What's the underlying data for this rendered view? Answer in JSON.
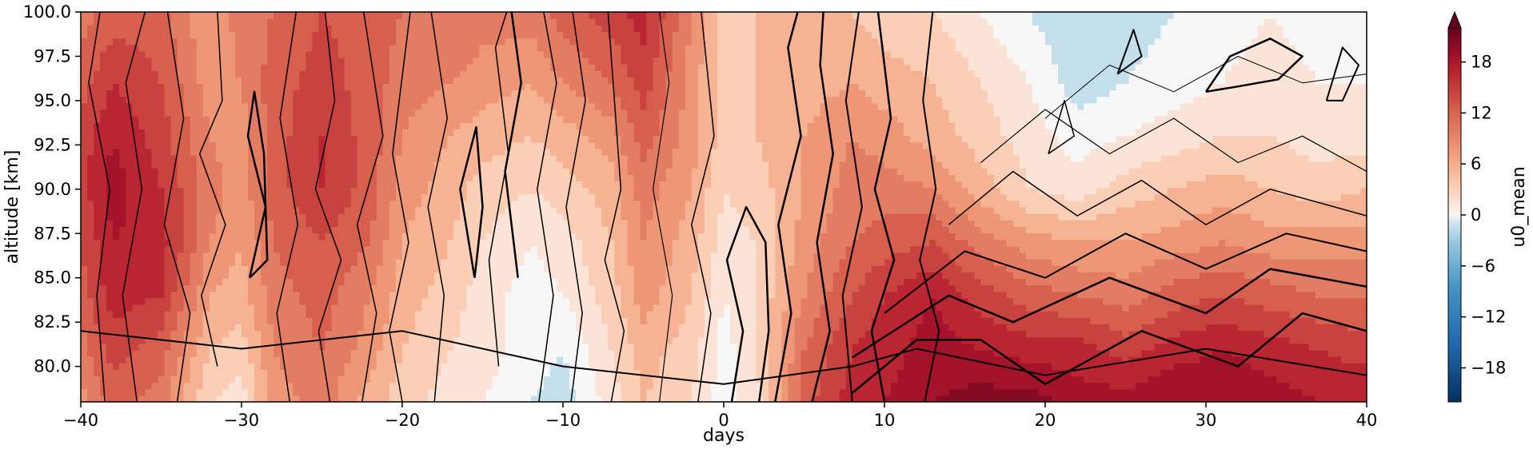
{
  "chart_data": {
    "type": "heatmap",
    "subtype": "filled-contour",
    "xlabel": "days",
    "ylabel": "altitude [km]",
    "colorbar_label": "u0_mean",
    "colormap": "RdBu_r",
    "colorbar_extend": "max",
    "xlim": [
      -40,
      40
    ],
    "ylim": [
      78,
      100
    ],
    "xticks": [
      -40,
      -30,
      -20,
      -10,
      0,
      10,
      20,
      30,
      40
    ],
    "xtick_labels": [
      "−40",
      "−30",
      "−20",
      "−10",
      "0",
      "10",
      "20",
      "30",
      "40"
    ],
    "yticks": [
      80.0,
      82.5,
      85.0,
      87.5,
      90.0,
      92.5,
      95.0,
      97.5,
      100.0
    ],
    "ytick_labels": [
      "80.0",
      "82.5",
      "85.0",
      "87.5",
      "90.0",
      "92.5",
      "95.0",
      "97.5",
      "100.0"
    ],
    "clim": [
      -22,
      22
    ],
    "colorbar_ticks": [
      -18,
      -12,
      -6,
      0,
      6,
      12,
      18
    ],
    "colorbar_tick_labels": [
      "−18",
      "−12",
      "−6",
      "0",
      "6",
      "12",
      "18"
    ],
    "colors": {
      "neg_strong": "#053061",
      "neg_mid": "#4393c3",
      "neg_light": "#d1e5f0",
      "zero": "#f7f7f7",
      "pos_light": "#fddbc7",
      "pos_mid": "#f4a582",
      "pos_high": "#d6604d",
      "pos_strong": "#b2182b",
      "pos_extreme": "#67001f",
      "contour_line": "#000000"
    },
    "u0_mean_x": [
      -40,
      -38,
      -35,
      -32,
      -30,
      -28,
      -25,
      -22,
      -20,
      -17,
      -15,
      -12,
      -10,
      -7,
      -5,
      -2,
      0,
      2,
      5,
      8,
      10,
      13,
      16,
      19,
      22,
      25,
      28,
      31,
      34,
      37,
      40
    ],
    "u0_mean_y": [
      78,
      81,
      84,
      87,
      90,
      93,
      96,
      100
    ],
    "u0_mean_values": [
      [
        8,
        12,
        10,
        3,
        2,
        8,
        10,
        6,
        4,
        2,
        1,
        -1,
        -2,
        2,
        5,
        3,
        0,
        2,
        12,
        16,
        17,
        19,
        20,
        20,
        18,
        18,
        19,
        19,
        18,
        17,
        17
      ],
      [
        10,
        14,
        12,
        5,
        4,
        9,
        11,
        8,
        5,
        3,
        2,
        0,
        -1,
        3,
        6,
        4,
        0,
        3,
        11,
        15,
        16,
        18,
        17,
        16,
        16,
        14,
        16,
        17,
        16,
        15,
        14
      ],
      [
        12,
        16,
        15,
        7,
        6,
        10,
        12,
        9,
        6,
        4,
        2,
        0,
        1,
        4,
        8,
        5,
        1,
        3,
        9,
        13,
        15,
        17,
        14,
        12,
        11,
        10,
        12,
        13,
        12,
        11,
        11
      ],
      [
        13,
        17,
        16,
        9,
        7,
        11,
        13,
        11,
        7,
        5,
        3,
        1,
        2,
        5,
        9,
        6,
        2,
        3,
        8,
        11,
        12,
        13,
        10,
        8,
        7,
        7,
        8,
        9,
        8,
        8,
        8
      ],
      [
        14,
        18,
        15,
        10,
        8,
        12,
        15,
        12,
        8,
        6,
        4,
        3,
        4,
        6,
        10,
        7,
        3,
        4,
        7,
        10,
        10,
        9,
        6,
        3,
        2,
        4,
        5,
        6,
        5,
        4,
        5
      ],
      [
        14,
        17,
        14,
        9,
        8,
        12,
        15,
        12,
        9,
        7,
        6,
        5,
        6,
        8,
        12,
        8,
        4,
        5,
        7,
        9,
        8,
        6,
        4,
        2,
        0,
        1,
        2,
        3,
        3,
        2,
        2
      ],
      [
        12,
        15,
        13,
        8,
        9,
        12,
        14,
        12,
        10,
        9,
        8,
        7,
        9,
        11,
        14,
        8,
        4,
        5,
        6,
        7,
        6,
        5,
        3,
        1,
        -2,
        -1,
        0,
        1,
        2,
        1,
        1
      ],
      [
        10,
        12,
        12,
        7,
        10,
        11,
        13,
        12,
        11,
        11,
        10,
        10,
        12,
        14,
        16,
        9,
        4,
        5,
        5,
        5,
        4,
        3,
        1,
        -1,
        -3,
        -2,
        -1,
        0,
        1,
        0,
        0
      ]
    ],
    "contour_paths": [
      {
        "w": 1.5,
        "pts": [
          [
            -38.5,
            78
          ],
          [
            -39.0,
            84
          ],
          [
            -38.2,
            90
          ],
          [
            -39.5,
            96
          ],
          [
            -38.8,
            100
          ]
        ]
      },
      {
        "w": 1.5,
        "pts": [
          [
            -36.5,
            78
          ],
          [
            -37.4,
            84
          ],
          [
            -36.2,
            90
          ],
          [
            -37.2,
            96
          ],
          [
            -36.0,
            100
          ]
        ]
      },
      {
        "w": 1.5,
        "pts": [
          [
            -34,
            78
          ],
          [
            -33.2,
            83
          ],
          [
            -34.8,
            88
          ],
          [
            -33.6,
            94
          ],
          [
            -34.6,
            100
          ]
        ]
      },
      {
        "w": 1.5,
        "pts": [
          [
            -31.5,
            80
          ],
          [
            -32.5,
            84
          ],
          [
            -31.0,
            88
          ],
          [
            -32.6,
            92
          ],
          [
            -31.2,
            95
          ],
          [
            -31.5,
            100
          ]
        ]
      },
      {
        "w": 2.5,
        "pts": [
          [
            -29.5,
            85
          ],
          [
            -28.5,
            89
          ],
          [
            -29.6,
            93
          ],
          [
            -29.2,
            95.5
          ],
          [
            -28.6,
            92
          ],
          [
            -28.4,
            86
          ],
          [
            -29.5,
            85
          ]
        ]
      },
      {
        "w": 1.5,
        "pts": [
          [
            -27,
            78
          ],
          [
            -27.8,
            83
          ],
          [
            -26.5,
            88
          ],
          [
            -27.6,
            94
          ],
          [
            -26.6,
            100
          ]
        ]
      },
      {
        "w": 1.5,
        "pts": [
          [
            -24.5,
            78
          ],
          [
            -25.2,
            82
          ],
          [
            -23.8,
            86
          ],
          [
            -25.4,
            90
          ],
          [
            -24.2,
            95
          ],
          [
            -24.8,
            100
          ]
        ]
      },
      {
        "w": 1.5,
        "pts": [
          [
            -22.5,
            78
          ],
          [
            -21.6,
            83
          ],
          [
            -22.8,
            88
          ],
          [
            -21.2,
            93
          ],
          [
            -22.4,
            100
          ]
        ]
      },
      {
        "w": 1.5,
        "pts": [
          [
            -20,
            78
          ],
          [
            -20.8,
            82
          ],
          [
            -19.6,
            87
          ],
          [
            -20.6,
            92
          ],
          [
            -19.5,
            100
          ]
        ]
      },
      {
        "w": 1.5,
        "pts": [
          [
            -18,
            78
          ],
          [
            -17.4,
            84
          ],
          [
            -18.4,
            89
          ],
          [
            -17.2,
            94
          ],
          [
            -18.2,
            100
          ]
        ]
      },
      {
        "w": 2.5,
        "pts": [
          [
            -15.5,
            85
          ],
          [
            -16.4,
            90
          ],
          [
            -15.4,
            93.5
          ],
          [
            -15.0,
            89
          ],
          [
            -15.5,
            85
          ]
        ]
      },
      {
        "w": 1.5,
        "pts": [
          [
            -14,
            80
          ],
          [
            -14.6,
            86
          ],
          [
            -13.4,
            92
          ],
          [
            -14.2,
            98
          ],
          [
            -13.5,
            100
          ]
        ]
      },
      {
        "w": 2.5,
        "pts": [
          [
            -12.8,
            85
          ],
          [
            -13.6,
            91
          ],
          [
            -12.6,
            96
          ],
          [
            -13.2,
            100
          ]
        ]
      },
      {
        "w": 1.5,
        "pts": [
          [
            -11.5,
            78
          ],
          [
            -10.6,
            84
          ],
          [
            -11.6,
            90
          ],
          [
            -10.4,
            96
          ],
          [
            -11.2,
            100
          ]
        ]
      },
      {
        "w": 1.5,
        "pts": [
          [
            -9.5,
            78
          ],
          [
            -8.8,
            83
          ],
          [
            -9.8,
            89
          ],
          [
            -8.6,
            95
          ],
          [
            -9.4,
            100
          ]
        ]
      },
      {
        "w": 1.5,
        "pts": [
          [
            -7,
            78
          ],
          [
            -6.2,
            82
          ],
          [
            -7.4,
            86
          ],
          [
            -6.4,
            90
          ],
          [
            -7.2,
            100
          ]
        ]
      },
      {
        "w": 1.2,
        "pts": [
          [
            -4,
            78
          ],
          [
            -3.2,
            84
          ],
          [
            -4.4,
            90
          ],
          [
            -3.4,
            96
          ],
          [
            -4.0,
            100
          ]
        ]
      },
      {
        "w": 1.5,
        "pts": [
          [
            -1.6,
            78
          ],
          [
            -0.8,
            83
          ],
          [
            -2.0,
            88
          ],
          [
            -0.6,
            93
          ],
          [
            -1.4,
            100
          ]
        ]
      },
      {
        "w": 2.5,
        "pts": [
          [
            0.5,
            78
          ],
          [
            1.2,
            82
          ],
          [
            0.2,
            86
          ],
          [
            1.4,
            89
          ],
          [
            2.6,
            87
          ],
          [
            2.8,
            82
          ],
          [
            2.2,
            78
          ]
        ]
      },
      {
        "w": 2.5,
        "pts": [
          [
            3.2,
            78
          ],
          [
            4.2,
            83
          ],
          [
            3.4,
            88
          ],
          [
            4.8,
            93
          ],
          [
            4.0,
            98
          ],
          [
            4.6,
            100
          ]
        ]
      },
      {
        "w": 2.5,
        "pts": [
          [
            5.5,
            78
          ],
          [
            6.6,
            82
          ],
          [
            5.8,
            87
          ],
          [
            6.8,
            92
          ],
          [
            6.0,
            97
          ],
          [
            6.2,
            100
          ]
        ]
      },
      {
        "w": 2.0,
        "pts": [
          [
            8,
            78
          ],
          [
            7.4,
            84
          ],
          [
            8.6,
            89
          ],
          [
            7.6,
            95
          ],
          [
            8.4,
            100
          ]
        ]
      },
      {
        "w": 2.5,
        "pts": [
          [
            10,
            78
          ],
          [
            9.2,
            82
          ],
          [
            10.6,
            86
          ],
          [
            9.4,
            90
          ],
          [
            10.4,
            94
          ],
          [
            9.6,
            100
          ]
        ]
      },
      {
        "w": 2.0,
        "pts": [
          [
            12.5,
            78
          ],
          [
            13.4,
            82
          ],
          [
            12.2,
            86
          ],
          [
            13.2,
            90
          ],
          [
            12.4,
            95
          ],
          [
            13.0,
            100
          ]
        ]
      },
      {
        "w": 2.0,
        "pts": [
          [
            -40,
            82
          ],
          [
            -30,
            81
          ],
          [
            -20,
            82
          ],
          [
            -10,
            80
          ],
          [
            0,
            79
          ],
          [
            8,
            80
          ],
          [
            12,
            81
          ],
          [
            20,
            79.5
          ],
          [
            30,
            81
          ],
          [
            40,
            79.5
          ]
        ]
      },
      {
        "w": 2.5,
        "pts": [
          [
            8,
            78.5
          ],
          [
            12,
            81.5
          ],
          [
            16,
            81.5
          ],
          [
            20,
            79.0
          ],
          [
            26,
            82
          ],
          [
            32,
            80
          ],
          [
            36,
            83
          ],
          [
            40,
            82
          ]
        ]
      },
      {
        "w": 2.5,
        "pts": [
          [
            8,
            80.5
          ],
          [
            14,
            84.0
          ],
          [
            18,
            82.5
          ],
          [
            24,
            85
          ],
          [
            30,
            83
          ],
          [
            34,
            85.5
          ],
          [
            40,
            84.5
          ]
        ]
      },
      {
        "w": 2.0,
        "pts": [
          [
            10,
            83
          ],
          [
            15,
            86.5
          ],
          [
            20,
            85
          ],
          [
            25,
            87.5
          ],
          [
            30,
            85.5
          ],
          [
            35,
            87.5
          ],
          [
            40,
            86.5
          ]
        ]
      },
      {
        "w": 1.5,
        "pts": [
          [
            14,
            88
          ],
          [
            18,
            91
          ],
          [
            22,
            88.5
          ],
          [
            26,
            90.5
          ],
          [
            30,
            88
          ],
          [
            34,
            90
          ],
          [
            40,
            88.5
          ]
        ]
      },
      {
        "w": 1.2,
        "pts": [
          [
            16,
            91.5
          ],
          [
            20,
            94.5
          ],
          [
            24,
            92
          ],
          [
            28,
            94
          ],
          [
            32,
            91.5
          ],
          [
            36,
            93
          ],
          [
            40,
            91
          ]
        ]
      },
      {
        "w": 1.0,
        "pts": [
          [
            20,
            94
          ],
          [
            24,
            97
          ],
          [
            28,
            95.5
          ],
          [
            32,
            97.5
          ],
          [
            36,
            96
          ],
          [
            40,
            96.5
          ]
        ]
      },
      {
        "w": 2.5,
        "pts": [
          [
            30,
            95.5
          ],
          [
            31.5,
            97.5
          ],
          [
            34,
            98.5
          ],
          [
            36,
            97.5
          ],
          [
            34.5,
            96.2
          ],
          [
            32,
            95.8
          ],
          [
            30,
            95.5
          ]
        ]
      },
      {
        "w": 2.0,
        "pts": [
          [
            24.5,
            96.5
          ],
          [
            25.5,
            99
          ],
          [
            26,
            97.5
          ],
          [
            24.5,
            96.5
          ]
        ]
      },
      {
        "w": 2.0,
        "pts": [
          [
            37.5,
            95
          ],
          [
            38.5,
            98
          ],
          [
            39.5,
            97
          ],
          [
            38.5,
            95
          ],
          [
            37.5,
            95
          ]
        ]
      },
      {
        "w": 1.5,
        "pts": [
          [
            20.2,
            92
          ],
          [
            21.2,
            95
          ],
          [
            21.8,
            93
          ],
          [
            20.2,
            92
          ]
        ]
      }
    ]
  }
}
